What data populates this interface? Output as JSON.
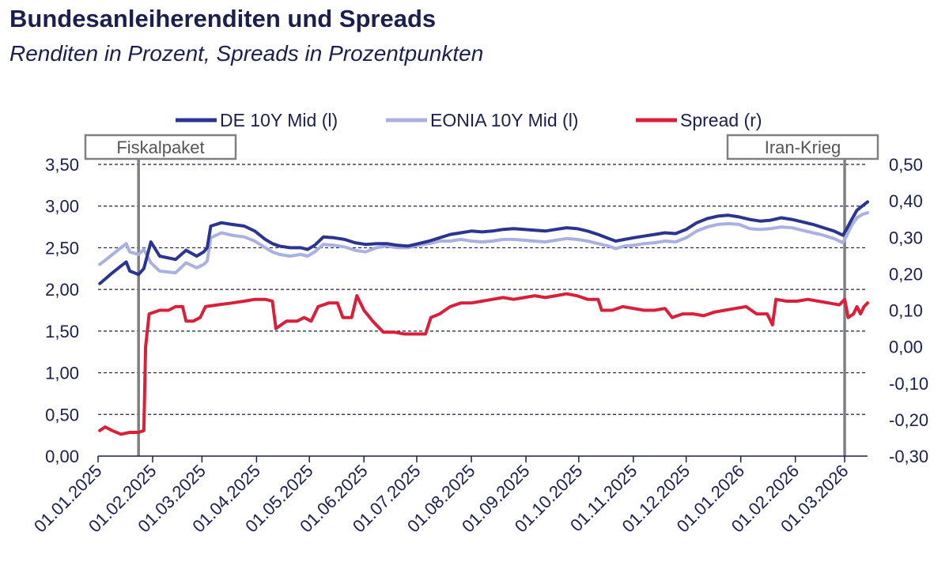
{
  "title": "Bundesanleiherenditen und Spreads",
  "subtitle": "Renditen in Prozent, Spreads in Prozentpunkten",
  "colors": {
    "de": "#2b3590",
    "eonia": "#aab0e0",
    "spread": "#d9203a",
    "text": "#1a1f4e",
    "annotation": "#808080"
  },
  "chart_data": {
    "type": "line",
    "x_range": [
      "01.01.2025",
      "14.03.2026"
    ],
    "y_left": {
      "ylim": [
        0,
        3.5
      ],
      "ticks": [
        "0,00",
        "0,50",
        "1,00",
        "1,50",
        "2,00",
        "2,50",
        "3,00",
        "3,50"
      ]
    },
    "y_right": {
      "ylim": [
        -0.3,
        0.5
      ],
      "ticks": [
        "-0,30",
        "-0,20",
        "-0,10",
        "0,00",
        "0,10",
        "0,20",
        "0,30",
        "0,40",
        "0,50"
      ]
    },
    "x_ticks": [
      "01.01.2025",
      "01.02.2025",
      "01.03.2025",
      "01.04.2025",
      "01.05.2025",
      "01.06.2025",
      "01.07.2025",
      "01.08.2025",
      "01.09.2025",
      "01.10.2025",
      "01.11.2025",
      "01.12.2025",
      "01.01.2026",
      "01.02.2026",
      "01.03.2026"
    ],
    "grid": "horizontal-dashed",
    "legend": [
      "DE 10Y Mid (l)",
      "EONIA 10Y Mid (l)",
      "Spread (r)"
    ],
    "annotations": [
      {
        "label": "Fiskalpaket",
        "x": "24.01.2025"
      },
      {
        "label": "Iran-Krieg",
        "x": "01.03.2026"
      }
    ],
    "series": [
      {
        "name": "DE 10Y Mid (l)",
        "axis": "left",
        "points": [
          [
            "02.01.2025",
            2.07
          ],
          [
            "08.01.2025",
            2.18
          ],
          [
            "14.01.2025",
            2.28
          ],
          [
            "17.01.2025",
            2.33
          ],
          [
            "19.01.2025",
            2.22
          ],
          [
            "24.01.2025",
            2.18
          ],
          [
            "27.01.2025",
            2.25
          ],
          [
            "31.01.2025",
            2.57
          ],
          [
            "05.02.2025",
            2.4
          ],
          [
            "14.02.2025",
            2.36
          ],
          [
            "20.02.2025",
            2.47
          ],
          [
            "26.02.2025",
            2.4
          ],
          [
            "02.03.2025",
            2.45
          ],
          [
            "04.03.2025",
            2.5
          ],
          [
            "06.03.2025",
            2.76
          ],
          [
            "12.03.2025",
            2.8
          ],
          [
            "18.03.2025",
            2.78
          ],
          [
            "25.03.2025",
            2.76
          ],
          [
            "31.03.2025",
            2.7
          ],
          [
            "06.04.2025",
            2.6
          ],
          [
            "10.04.2025",
            2.55
          ],
          [
            "14.04.2025",
            2.52
          ],
          [
            "20.04.2025",
            2.5
          ],
          [
            "26.04.2025",
            2.5
          ],
          [
            "30.04.2025",
            2.48
          ],
          [
            "04.05.2025",
            2.53
          ],
          [
            "09.05.2025",
            2.63
          ],
          [
            "15.05.2025",
            2.62
          ],
          [
            "21.05.2025",
            2.6
          ],
          [
            "27.05.2025",
            2.56
          ],
          [
            "02.06.2025",
            2.54
          ],
          [
            "08.06.2025",
            2.55
          ],
          [
            "14.06.2025",
            2.55
          ],
          [
            "20.06.2025",
            2.53
          ],
          [
            "26.06.2025",
            2.52
          ],
          [
            "02.07.2025",
            2.55
          ],
          [
            "08.07.2025",
            2.58
          ],
          [
            "14.07.2025",
            2.62
          ],
          [
            "20.07.2025",
            2.66
          ],
          [
            "26.07.2025",
            2.68
          ],
          [
            "01.08.2025",
            2.7
          ],
          [
            "07.08.2025",
            2.69
          ],
          [
            "13.08.2025",
            2.7
          ],
          [
            "19.08.2025",
            2.72
          ],
          [
            "25.08.2025",
            2.73
          ],
          [
            "31.08.2025",
            2.72
          ],
          [
            "06.09.2025",
            2.71
          ],
          [
            "12.09.2025",
            2.7
          ],
          [
            "18.09.2025",
            2.72
          ],
          [
            "24.09.2025",
            2.74
          ],
          [
            "30.09.2025",
            2.73
          ],
          [
            "06.10.2025",
            2.7
          ],
          [
            "12.10.2025",
            2.66
          ],
          [
            "18.10.2025",
            2.61
          ],
          [
            "22.10.2025",
            2.58
          ],
          [
            "27.10.2025",
            2.6
          ],
          [
            "01.11.2025",
            2.62
          ],
          [
            "07.11.2025",
            2.64
          ],
          [
            "13.11.2025",
            2.66
          ],
          [
            "19.11.2025",
            2.68
          ],
          [
            "25.11.2025",
            2.67
          ],
          [
            "01.12.2025",
            2.72
          ],
          [
            "07.12.2025",
            2.8
          ],
          [
            "13.12.2025",
            2.85
          ],
          [
            "19.12.2025",
            2.88
          ],
          [
            "25.12.2025",
            2.89
          ],
          [
            "31.12.2025",
            2.87
          ],
          [
            "06.01.2026",
            2.84
          ],
          [
            "12.01.2026",
            2.82
          ],
          [
            "18.01.2026",
            2.83
          ],
          [
            "24.01.2026",
            2.86
          ],
          [
            "30.01.2026",
            2.84
          ],
          [
            "05.02.2026",
            2.81
          ],
          [
            "11.02.2026",
            2.78
          ],
          [
            "17.02.2026",
            2.74
          ],
          [
            "23.02.2026",
            2.7
          ],
          [
            "28.02.2026",
            2.65
          ],
          [
            "02.03.2026",
            2.72
          ],
          [
            "05.03.2026",
            2.84
          ],
          [
            "08.03.2026",
            2.95
          ],
          [
            "11.03.2026",
            3.0
          ],
          [
            "14.03.2026",
            3.05
          ]
        ]
      },
      {
        "name": "EONIA 10Y Mid (l)",
        "axis": "left",
        "points": [
          [
            "02.01.2025",
            2.3
          ],
          [
            "08.01.2025",
            2.4
          ],
          [
            "14.01.2025",
            2.5
          ],
          [
            "17.01.2025",
            2.55
          ],
          [
            "19.01.2025",
            2.45
          ],
          [
            "24.01.2025",
            2.42
          ],
          [
            "27.01.2025",
            2.48
          ],
          [
            "31.01.2025",
            2.32
          ],
          [
            "05.02.2025",
            2.22
          ],
          [
            "14.02.2025",
            2.2
          ],
          [
            "20.02.2025",
            2.32
          ],
          [
            "26.02.2025",
            2.26
          ],
          [
            "02.03.2025",
            2.3
          ],
          [
            "04.03.2025",
            2.34
          ],
          [
            "06.03.2025",
            2.62
          ],
          [
            "12.03.2025",
            2.68
          ],
          [
            "18.03.2025",
            2.65
          ],
          [
            "25.03.2025",
            2.63
          ],
          [
            "31.03.2025",
            2.58
          ],
          [
            "06.04.2025",
            2.5
          ],
          [
            "10.04.2025",
            2.45
          ],
          [
            "14.04.2025",
            2.42
          ],
          [
            "20.04.2025",
            2.4
          ],
          [
            "26.04.2025",
            2.42
          ],
          [
            "30.04.2025",
            2.4
          ],
          [
            "04.05.2025",
            2.45
          ],
          [
            "09.05.2025",
            2.54
          ],
          [
            "15.05.2025",
            2.53
          ],
          [
            "21.05.2025",
            2.51
          ],
          [
            "27.05.2025",
            2.47
          ],
          [
            "02.06.2025",
            2.45
          ],
          [
            "08.06.2025",
            2.5
          ],
          [
            "14.06.2025",
            2.52
          ],
          [
            "20.06.2025",
            2.5
          ],
          [
            "26.06.2025",
            2.5
          ],
          [
            "02.07.2025",
            2.53
          ],
          [
            "08.07.2025",
            2.55
          ],
          [
            "14.07.2025",
            2.58
          ],
          [
            "20.07.2025",
            2.58
          ],
          [
            "26.07.2025",
            2.6
          ],
          [
            "01.08.2025",
            2.58
          ],
          [
            "07.08.2025",
            2.57
          ],
          [
            "13.08.2025",
            2.58
          ],
          [
            "19.08.2025",
            2.6
          ],
          [
            "25.08.2025",
            2.6
          ],
          [
            "31.08.2025",
            2.59
          ],
          [
            "06.09.2025",
            2.58
          ],
          [
            "12.09.2025",
            2.57
          ],
          [
            "18.09.2025",
            2.59
          ],
          [
            "24.09.2025",
            2.61
          ],
          [
            "30.09.2025",
            2.6
          ],
          [
            "06.10.2025",
            2.58
          ],
          [
            "12.10.2025",
            2.55
          ],
          [
            "18.10.2025",
            2.52
          ],
          [
            "22.10.2025",
            2.49
          ],
          [
            "27.10.2025",
            2.52
          ],
          [
            "01.11.2025",
            2.53
          ],
          [
            "07.11.2025",
            2.55
          ],
          [
            "13.11.2025",
            2.56
          ],
          [
            "19.11.2025",
            2.58
          ],
          [
            "25.11.2025",
            2.57
          ],
          [
            "01.12.2025",
            2.62
          ],
          [
            "07.12.2025",
            2.7
          ],
          [
            "13.12.2025",
            2.75
          ],
          [
            "19.12.2025",
            2.78
          ],
          [
            "25.12.2025",
            2.79
          ],
          [
            "31.12.2025",
            2.78
          ],
          [
            "06.01.2026",
            2.73
          ],
          [
            "12.01.2026",
            2.72
          ],
          [
            "18.01.2026",
            2.73
          ],
          [
            "24.01.2026",
            2.75
          ],
          [
            "30.01.2026",
            2.74
          ],
          [
            "05.02.2026",
            2.71
          ],
          [
            "11.02.2026",
            2.68
          ],
          [
            "17.02.2026",
            2.65
          ],
          [
            "23.02.2026",
            2.61
          ],
          [
            "28.02.2026",
            2.56
          ],
          [
            "02.03.2026",
            2.64
          ],
          [
            "05.03.2026",
            2.77
          ],
          [
            "08.03.2026",
            2.86
          ],
          [
            "11.03.2026",
            2.9
          ],
          [
            "14.03.2026",
            2.92
          ]
        ]
      },
      {
        "name": "Spread (r)",
        "axis": "right",
        "points": [
          [
            "02.01.2025",
            -0.23
          ],
          [
            "05.01.2025",
            -0.22
          ],
          [
            "09.01.2025",
            -0.23
          ],
          [
            "14.01.2025",
            -0.24
          ],
          [
            "19.01.2025",
            -0.235
          ],
          [
            "24.01.2025",
            -0.235
          ],
          [
            "27.01.2025",
            -0.23
          ],
          [
            "28.01.2025",
            0.0
          ],
          [
            "30.01.2025",
            0.09
          ],
          [
            "05.02.2025",
            0.1
          ],
          [
            "10.02.2025",
            0.1
          ],
          [
            "14.02.2025",
            0.11
          ],
          [
            "18.02.2025",
            0.11
          ],
          [
            "20.02.2025",
            0.07
          ],
          [
            "24.02.2025",
            0.07
          ],
          [
            "28.02.2025",
            0.08
          ],
          [
            "03.03.2025",
            0.11
          ],
          [
            "10.03.2025",
            0.115
          ],
          [
            "18.03.2025",
            0.12
          ],
          [
            "25.03.2025",
            0.125
          ],
          [
            "31.03.2025",
            0.13
          ],
          [
            "06.04.2025",
            0.13
          ],
          [
            "10.04.2025",
            0.125
          ],
          [
            "12.04.2025",
            0.05
          ],
          [
            "18.04.2025",
            0.07
          ],
          [
            "24.04.2025",
            0.07
          ],
          [
            "28.04.2025",
            0.08
          ],
          [
            "02.05.2025",
            0.07
          ],
          [
            "06.05.2025",
            0.11
          ],
          [
            "12.05.2025",
            0.12
          ],
          [
            "17.05.2025",
            0.12
          ],
          [
            "20.05.2025",
            0.08
          ],
          [
            "25.05.2025",
            0.08
          ],
          [
            "28.05.2025",
            0.14
          ],
          [
            "01.06.2025",
            0.1
          ],
          [
            "06.06.2025",
            0.07
          ],
          [
            "12.06.2025",
            0.04
          ],
          [
            "18.06.2025",
            0.04
          ],
          [
            "24.06.2025",
            0.035
          ],
          [
            "30.06.2025",
            0.035
          ],
          [
            "06.07.2025",
            0.035
          ],
          [
            "09.07.2025",
            0.08
          ],
          [
            "14.07.2025",
            0.09
          ],
          [
            "20.07.2025",
            0.11
          ],
          [
            "26.07.2025",
            0.12
          ],
          [
            "01.08.2025",
            0.12
          ],
          [
            "07.08.2025",
            0.125
          ],
          [
            "13.08.2025",
            0.13
          ],
          [
            "19.08.2025",
            0.135
          ],
          [
            "25.08.2025",
            0.13
          ],
          [
            "31.08.2025",
            0.135
          ],
          [
            "06.09.2025",
            0.14
          ],
          [
            "12.09.2025",
            0.135
          ],
          [
            "18.09.2025",
            0.14
          ],
          [
            "24.09.2025",
            0.145
          ],
          [
            "30.09.2025",
            0.14
          ],
          [
            "06.10.2025",
            0.13
          ],
          [
            "12.10.2025",
            0.13
          ],
          [
            "14.10.2025",
            0.1
          ],
          [
            "20.10.2025",
            0.1
          ],
          [
            "26.10.2025",
            0.11
          ],
          [
            "01.11.2025",
            0.105
          ],
          [
            "07.11.2025",
            0.1
          ],
          [
            "13.11.2025",
            0.1
          ],
          [
            "19.11.2025",
            0.105
          ],
          [
            "23.11.2025",
            0.08
          ],
          [
            "29.11.2025",
            0.09
          ],
          [
            "05.12.2025",
            0.09
          ],
          [
            "11.12.2025",
            0.085
          ],
          [
            "17.12.2025",
            0.095
          ],
          [
            "23.12.2025",
            0.1
          ],
          [
            "29.12.2025",
            0.105
          ],
          [
            "04.01.2026",
            0.11
          ],
          [
            "10.01.2026",
            0.09
          ],
          [
            "16.01.2026",
            0.09
          ],
          [
            "19.01.2026",
            0.06
          ],
          [
            "21.01.2026",
            0.13
          ],
          [
            "27.01.2026",
            0.125
          ],
          [
            "02.02.2026",
            0.125
          ],
          [
            "08.02.2026",
            0.13
          ],
          [
            "14.02.2026",
            0.125
          ],
          [
            "20.02.2026",
            0.12
          ],
          [
            "26.02.2026",
            0.115
          ],
          [
            "01.03.2026",
            0.13
          ],
          [
            "03.03.2026",
            0.08
          ],
          [
            "06.03.2026",
            0.09
          ],
          [
            "08.03.2026",
            0.11
          ],
          [
            "10.03.2026",
            0.09
          ],
          [
            "12.03.2026",
            0.11
          ],
          [
            "14.03.2026",
            0.12
          ]
        ]
      }
    ]
  }
}
